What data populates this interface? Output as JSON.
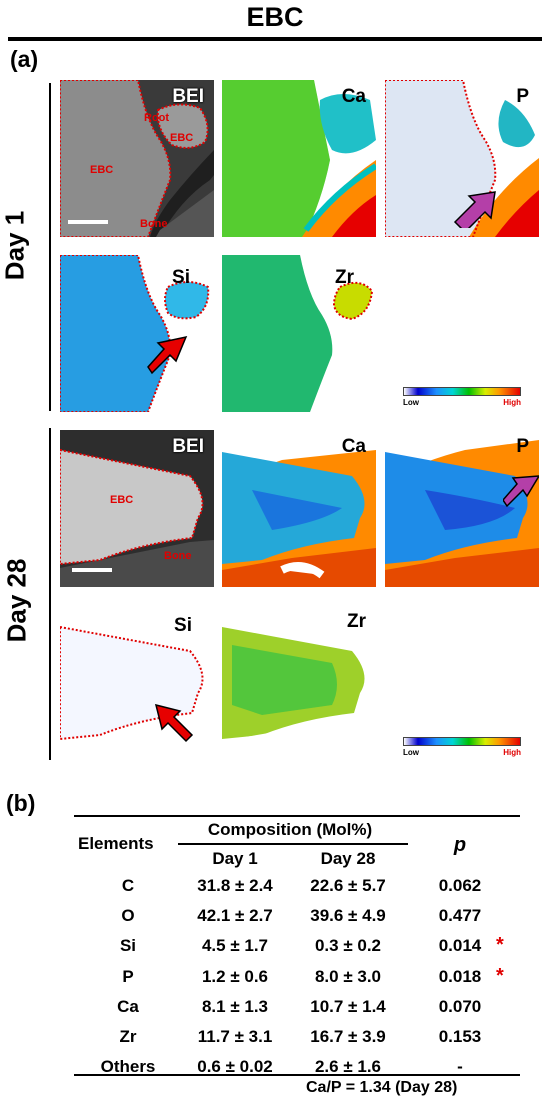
{
  "title": "EBC",
  "panel_a": "(a)",
  "panel_b": "(b)",
  "day1_label": "Day 1",
  "day28_label": "Day 28",
  "tiles": {
    "d1_bei": "BEI",
    "d1_ca": "Ca",
    "d1_p": "P",
    "d1_si": "Si",
    "d1_zr": "Zr",
    "d28_bei": "BEI",
    "d28_ca": "Ca",
    "d28_p": "P",
    "d28_si": "Si",
    "d28_zr": "Zr"
  },
  "regions": {
    "d1_root": "Root",
    "d1_ebc_small": "EBC",
    "d1_ebc": "EBC",
    "d1_bone": "Bone",
    "d28_ebc": "EBC",
    "d28_bone": "Bone"
  },
  "colorbar": {
    "low": "Low",
    "high": "High",
    "colors": [
      "#ffffff",
      "#0000cc",
      "#1e90ff",
      "#00d5d5",
      "#00c000",
      "#d7ee00",
      "#ff9900",
      "#e60000"
    ]
  },
  "arrow_colors": {
    "red": "#e60000",
    "purple": "#b43fa8"
  },
  "table": {
    "col_elements": "Elements",
    "col_composition": "Composition (Mol%)",
    "col_day1": "Day 1",
    "col_day28": "Day 28",
    "col_p": "p",
    "rows": [
      {
        "element": "C",
        "day1": "31.8 ± 2.4",
        "day28": "22.6 ± 5.7",
        "p": "0.062",
        "sig": ""
      },
      {
        "element": "O",
        "day1": "42.1 ± 2.7",
        "day28": "39.6 ± 4.9",
        "p": "0.477",
        "sig": ""
      },
      {
        "element": "Si",
        "day1": "4.5 ± 1.7",
        "day28": "0.3 ± 0.2",
        "p": "0.014",
        "sig": "*"
      },
      {
        "element": "P",
        "day1": "1.2 ± 0.6",
        "day28": "8.0 ± 3.0",
        "p": "0.018",
        "sig": "*"
      },
      {
        "element": "Ca",
        "day1": "8.1 ± 1.3",
        "day28": "10.7 ± 1.4",
        "p": "0.070",
        "sig": ""
      },
      {
        "element": "Zr",
        "day1": "11.7 ± 3.1",
        "day28": "16.7 ± 3.9",
        "p": "0.153",
        "sig": ""
      },
      {
        "element": "Others",
        "day1": "0.6 ± 0.02",
        "day28": "2.6 ± 1.6",
        "p": "-",
        "sig": ""
      }
    ],
    "footer": "Ca/P = 1.34 (Day 28)"
  }
}
